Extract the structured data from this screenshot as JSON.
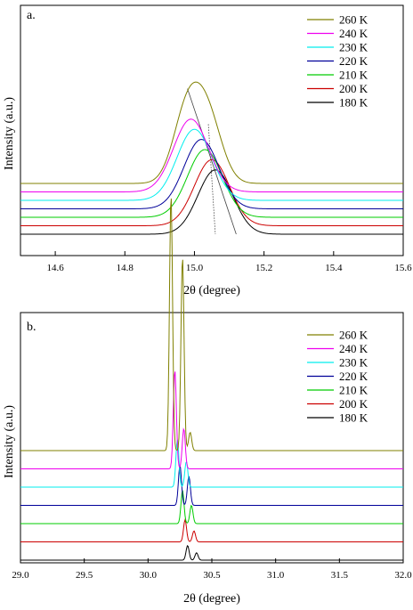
{
  "chart_data": [
    {
      "type": "line",
      "panel_label": "a.",
      "xlabel": "2θ (degree)",
      "ylabel": "Intensity (a.u.)",
      "xlim": [
        14.5,
        15.6
      ],
      "ylim": [
        0,
        1
      ],
      "x_ticks": [
        "14.6",
        "14.8",
        "15.0",
        "15.2",
        "15.4",
        "15.6"
      ],
      "x_tick_values": [
        14.6,
        14.8,
        15.0,
        15.2,
        15.4,
        15.6
      ],
      "legend": "top-right",
      "series": [
        {
          "name": "180 K",
          "color": "#000000",
          "baseline": 0.0,
          "peaks": [
            {
              "center": 15.06,
              "height": 0.38,
              "width": 0.05
            }
          ]
        },
        {
          "name": "200 K",
          "color": "#cc0000",
          "baseline": 0.05,
          "peaks": [
            {
              "center": 15.05,
              "height": 0.39,
              "width": 0.05
            }
          ]
        },
        {
          "name": "210 K",
          "color": "#00cc00",
          "baseline": 0.1,
          "peaks": [
            {
              "center": 15.03,
              "height": 0.4,
              "width": 0.05
            }
          ]
        },
        {
          "name": "220 K",
          "color": "#000099",
          "baseline": 0.15,
          "peaks": [
            {
              "center": 15.02,
              "height": 0.41,
              "width": 0.05
            }
          ]
        },
        {
          "name": "230 K",
          "color": "#00eeee",
          "baseline": 0.2,
          "peaks": [
            {
              "center": 15.0,
              "height": 0.42,
              "width": 0.05
            }
          ]
        },
        {
          "name": "240 K",
          "color": "#ee00ee",
          "baseline": 0.25,
          "peaks": [
            {
              "center": 14.99,
              "height": 0.43,
              "width": 0.05
            }
          ]
        },
        {
          "name": "260 K",
          "color": "#808000",
          "baseline": 0.3,
          "peaks": [
            {
              "center": 14.98,
              "height": 0.43,
              "width": 0.04
            },
            {
              "center": 15.04,
              "height": 0.36,
              "width": 0.04
            }
          ]
        }
      ],
      "guide_lines": [
        {
          "x": [
            14.98,
            15.12
          ],
          "y": [
            0.86,
            0.0
          ]
        },
        {
          "x": [
            15.04,
            15.06
          ],
          "y": [
            0.65,
            0.0
          ]
        }
      ]
    },
    {
      "type": "line",
      "panel_label": "b.",
      "xlabel": "2θ (degree)",
      "ylabel": "Intensity (a.u.)",
      "xlim": [
        29.0,
        32.0
      ],
      "ylim": [
        0,
        1
      ],
      "x_ticks": [
        "29.0",
        "29.5",
        "30.0",
        "30.5",
        "31.0",
        "31.5",
        "32.0"
      ],
      "x_tick_values": [
        29.0,
        29.5,
        30.0,
        30.5,
        31.0,
        31.5,
        32.0
      ],
      "legend": "top-right",
      "series": [
        {
          "name": "180 K",
          "color": "#000000",
          "baseline": 0.0,
          "peaks": [
            {
              "center": 30.31,
              "height": 0.04,
              "width": 0.012
            },
            {
              "center": 30.38,
              "height": 0.02,
              "width": 0.012
            }
          ]
        },
        {
          "name": "200 K",
          "color": "#cc0000",
          "baseline": 0.05,
          "peaks": [
            {
              "center": 30.29,
              "height": 0.06,
              "width": 0.012
            },
            {
              "center": 30.36,
              "height": 0.03,
              "width": 0.012
            }
          ]
        },
        {
          "name": "210 K",
          "color": "#00cc00",
          "baseline": 0.1,
          "peaks": [
            {
              "center": 30.27,
              "height": 0.09,
              "width": 0.012
            },
            {
              "center": 30.34,
              "height": 0.05,
              "width": 0.012
            }
          ]
        },
        {
          "name": "220 K",
          "color": "#000099",
          "baseline": 0.15,
          "peaks": [
            {
              "center": 30.25,
              "height": 0.11,
              "width": 0.012
            },
            {
              "center": 30.32,
              "height": 0.08,
              "width": 0.012
            }
          ]
        },
        {
          "name": "230 K",
          "color": "#00eeee",
          "baseline": 0.2,
          "peaks": [
            {
              "center": 30.23,
              "height": 0.13,
              "width": 0.012
            },
            {
              "center": 30.3,
              "height": 0.07,
              "width": 0.012
            }
          ]
        },
        {
          "name": "240 K",
          "color": "#ee00ee",
          "baseline": 0.25,
          "peaks": [
            {
              "center": 30.21,
              "height": 0.27,
              "width": 0.012
            },
            {
              "center": 30.28,
              "height": 0.11,
              "width": 0.012
            }
          ]
        },
        {
          "name": "260 K",
          "color": "#808000",
          "baseline": 0.3,
          "peaks": [
            {
              "center": 30.18,
              "height": 0.7,
              "width": 0.012
            },
            {
              "center": 30.27,
              "height": 0.53,
              "width": 0.012
            },
            {
              "center": 30.33,
              "height": 0.05,
              "width": 0.012
            }
          ]
        }
      ]
    }
  ]
}
